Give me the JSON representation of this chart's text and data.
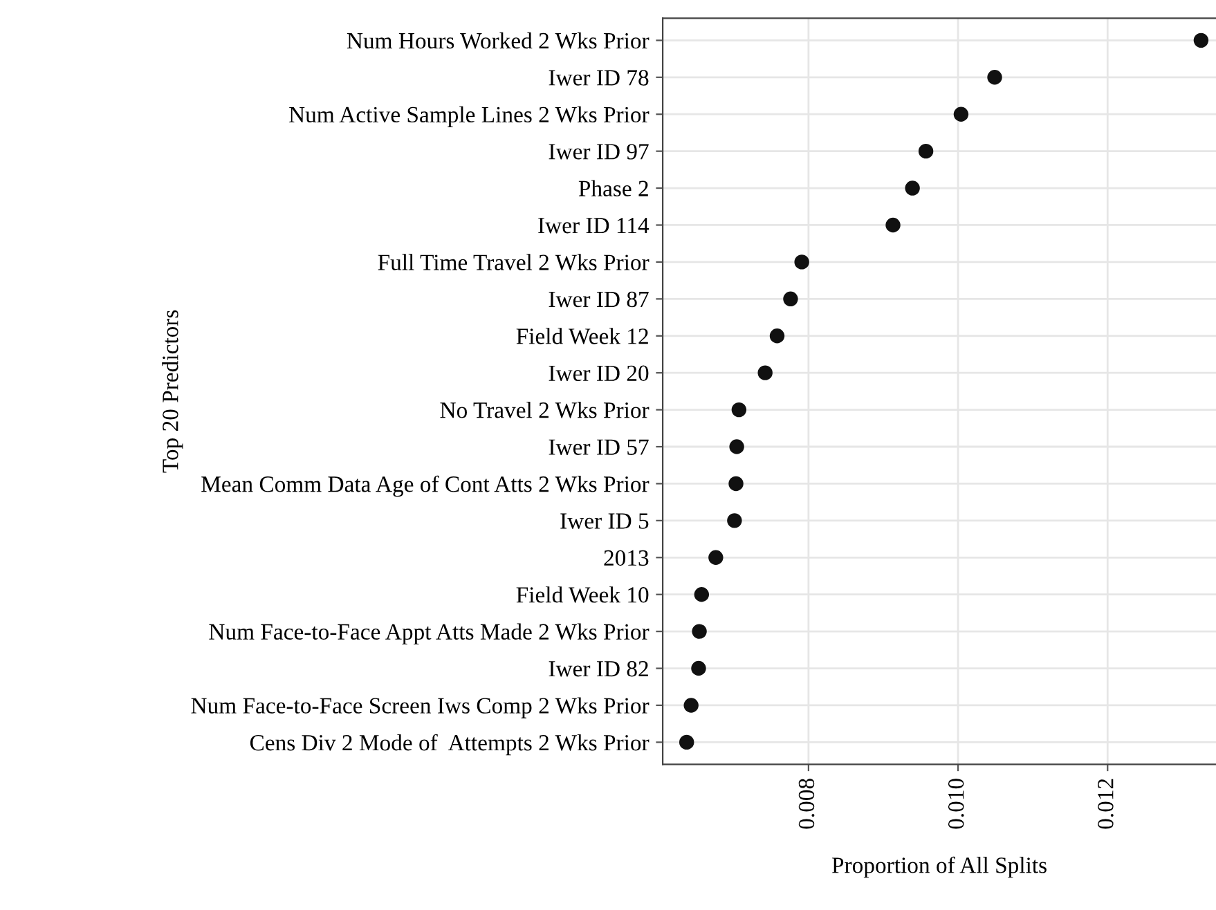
{
  "chart_data": {
    "type": "scatter",
    "xlabel": "Proportion of All Splits",
    "ylabel": "Top 20 Predictors",
    "categories": [
      "Num Hours Worked 2 Wks Prior",
      "Iwer ID 78",
      "Num Active Sample Lines 2 Wks Prior",
      "Iwer ID 97",
      "Phase 2",
      "Iwer ID 114",
      "Full Time Travel 2 Wks Prior",
      "Iwer ID 87",
      "Field Week 12",
      "Iwer ID 20",
      "No Travel 2 Wks Prior",
      "Iwer ID 57",
      "Mean Comm Data Age of Cont Atts 2 Wks Prior",
      "Iwer ID 5",
      "2013",
      "Field Week 10",
      "Num Face-to-Face Appt Atts Made 2 Wks Prior",
      "Iwer ID 82",
      "Num Face-to-Face Screen Iws Comp 2 Wks Prior",
      "Cens Div 2 Mode of  Attempts 2 Wks Prior"
    ],
    "orientation": "horizontal",
    "series": [
      {
        "color": "#111111",
        "values": [
          0.01325,
          0.01049,
          0.01004,
          0.00957,
          0.00939,
          0.00913,
          0.00791,
          0.00776,
          0.00758,
          0.00742,
          0.00707,
          0.00704,
          0.00703,
          0.00701,
          0.00676,
          0.00657,
          0.00654,
          0.00653,
          0.00643,
          0.00637
        ]
      }
    ],
    "xlim": [
      0.00605,
      0.01345
    ],
    "xticks": [
      0.008,
      {
        "value": 0.01,
        "label": "0.010"
      },
      0.012
    ],
    "marker": "circle",
    "grid": true
  }
}
